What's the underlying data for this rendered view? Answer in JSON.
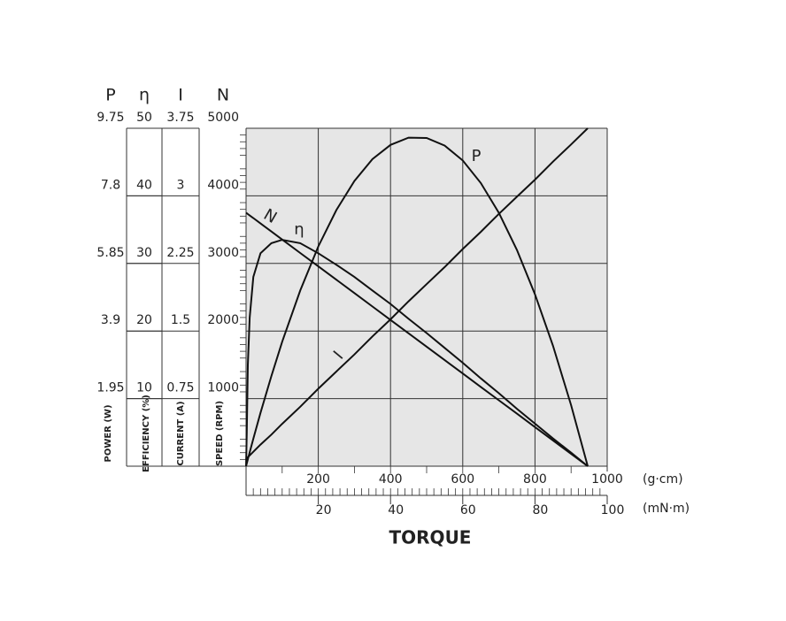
{
  "chart_data": {
    "type": "line",
    "x_label": "TORQUE",
    "x": [
      0,
      2,
      5,
      10,
      20,
      40,
      70,
      100,
      150,
      200,
      250,
      300,
      350,
      400,
      450,
      500,
      550,
      600,
      650,
      700,
      750,
      800,
      850,
      900,
      946
    ],
    "xlim": [
      0,
      1000
    ],
    "xticks": [
      200,
      400,
      600,
      800,
      1000
    ],
    "x_unit": "(g·cm)",
    "x2lim": [
      0,
      100
    ],
    "x2ticks": [
      20,
      40,
      60,
      80,
      100
    ],
    "x2_unit": "(mN·m)",
    "grid": true,
    "y_axes": [
      {
        "symbol": "P",
        "label": "POWER (W)",
        "lim": [
          0,
          9.75
        ],
        "ticks": [
          1.95,
          3.9,
          5.85,
          7.8,
          9.75
        ]
      },
      {
        "symbol": "η",
        "label": "EFFICIENCY (%)",
        "lim": [
          0,
          50
        ],
        "ticks": [
          10,
          20,
          30,
          40,
          50
        ]
      },
      {
        "symbol": "I",
        "label": "CURRENT (A)",
        "lim": [
          0,
          3.75
        ],
        "ticks": [
          0.75,
          1.5,
          2.25,
          3,
          3.75
        ]
      },
      {
        "symbol": "N",
        "label": "SPEED (RPM)",
        "lim": [
          0,
          5000
        ],
        "ticks": [
          1000,
          2000,
          3000,
          4000,
          5000
        ]
      }
    ],
    "series": [
      {
        "name": "P",
        "axis": 0,
        "color": "#111111",
        "values": [
          0,
          0.08,
          0.2,
          0.4,
          0.79,
          1.54,
          2.6,
          3.59,
          5.07,
          6.34,
          7.39,
          8.23,
          8.86,
          9.27,
          9.48,
          9.47,
          9.25,
          8.82,
          8.17,
          7.31,
          6.24,
          4.96,
          3.47,
          1.76,
          0
        ]
      },
      {
        "name": "η",
        "axis": 1,
        "color": "#111111",
        "values": [
          0,
          5,
          15,
          22,
          28,
          31.5,
          33,
          33.5,
          33,
          31.5,
          29.8,
          28,
          26,
          24,
          21.8,
          19.7,
          17.5,
          15.3,
          13,
          10.8,
          8.5,
          6.3,
          4.1,
          2,
          0
        ]
      },
      {
        "name": "N",
        "axis": 3,
        "color": "#111111",
        "values": [
          3750,
          3742,
          3730,
          3710,
          3671,
          3591,
          3473,
          3354,
          3155,
          2957,
          2759,
          2561,
          2363,
          2164,
          1966,
          1768,
          1570,
          1372,
          1173,
          975,
          777,
          579,
          381,
          182,
          0
        ]
      },
      {
        "name": "I",
        "axis": 2,
        "color": "#111111",
        "values": [
          0.08,
          0.09,
          0.1,
          0.12,
          0.16,
          0.24,
          0.35,
          0.47,
          0.66,
          0.86,
          1.05,
          1.24,
          1.44,
          1.63,
          1.83,
          2.02,
          2.21,
          2.41,
          2.6,
          2.8,
          2.99,
          3.18,
          3.38,
          3.57,
          3.75
        ]
      }
    ]
  }
}
